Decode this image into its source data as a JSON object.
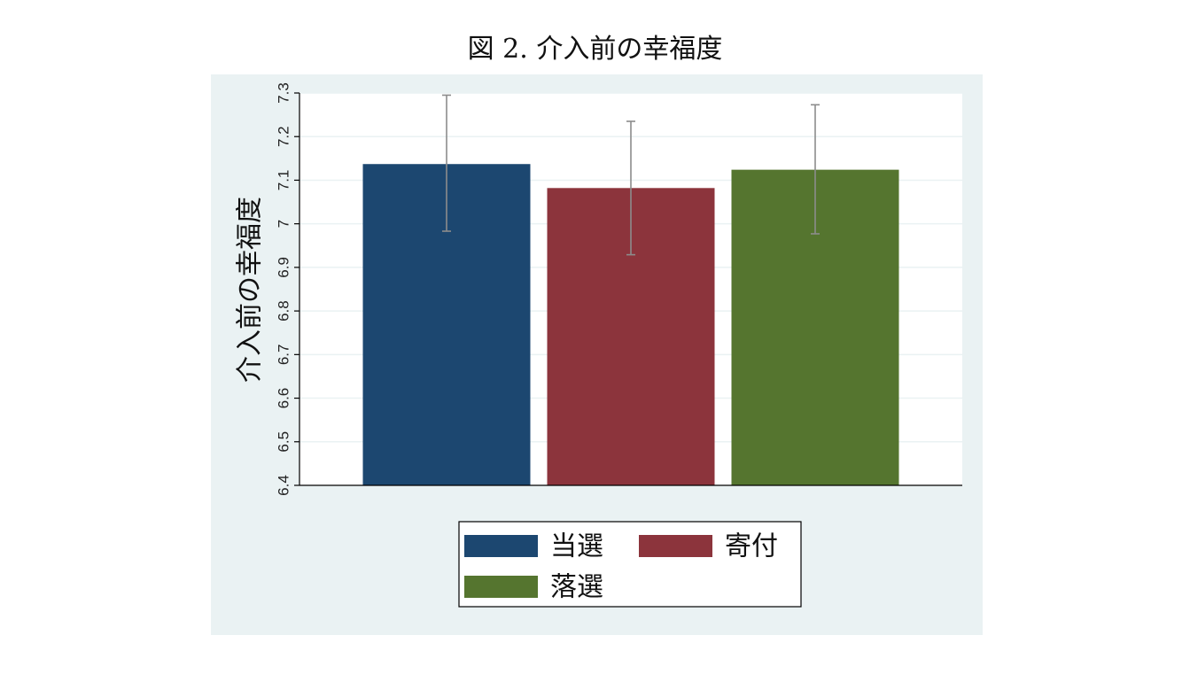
{
  "figure": {
    "title": "図 2. 介入前の幸福度"
  },
  "chart_data": {
    "type": "bar",
    "title": "図 2. 介入前の幸福度",
    "xlabel": "",
    "ylabel": "介入前の幸福度",
    "ylim": [
      6.4,
      7.3
    ],
    "yticks": [
      "6.4",
      "6.5",
      "6.6",
      "6.7",
      "6.8",
      "6.9",
      "7",
      "7.1",
      "7.2",
      "7.3"
    ],
    "grid": true,
    "legend_position": "bottom",
    "series": [
      {
        "name": "当選",
        "value": 7.137,
        "ci": [
          6.983,
          7.295
        ],
        "color": "#1c4770"
      },
      {
        "name": "寄付",
        "value": 7.082,
        "ci": [
          6.929,
          7.235
        ],
        "color": "#8c343c"
      },
      {
        "name": "落選",
        "value": 7.124,
        "ci": [
          6.977,
          7.273
        ],
        "color": "#55752f"
      }
    ],
    "colors": {
      "background": "#eaf2f3",
      "plot": "#ffffff",
      "grid": "#eaf2f3",
      "errorbar": "#8c8c8c"
    }
  }
}
